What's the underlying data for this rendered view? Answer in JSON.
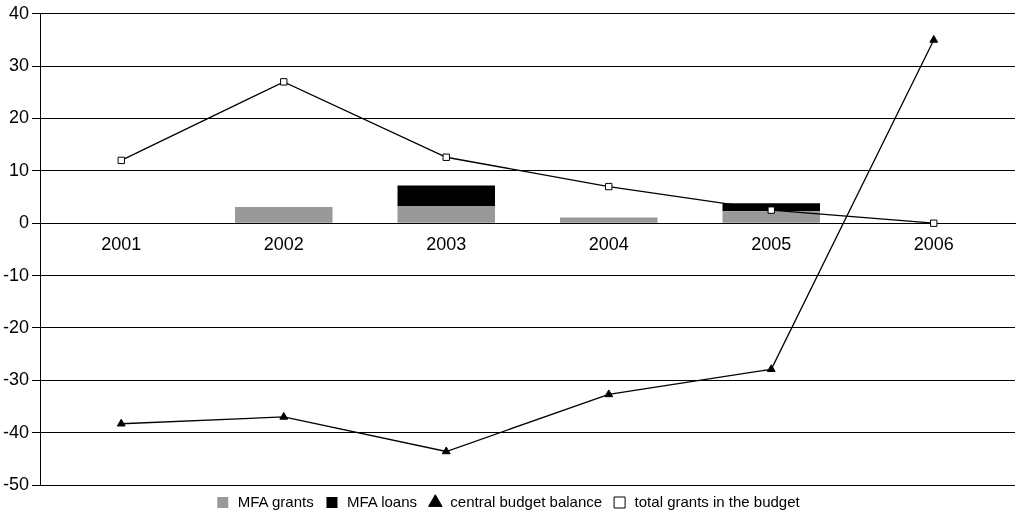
{
  "chart_data": {
    "type": "bar",
    "categories": [
      "2001",
      "2002",
      "2003",
      "2004",
      "2005",
      "2006"
    ],
    "stacked": true,
    "series": [
      {
        "name": "MFA grants",
        "color": "#999999",
        "values": [
          null,
          3.1,
          3.3,
          1.1,
          2.3,
          null
        ]
      },
      {
        "name": "MFA loans",
        "color": "#000000",
        "values": [
          null,
          null,
          3.9,
          null,
          1.5,
          null
        ]
      },
      {
        "name": "central budget balance",
        "type": "line",
        "color": "#000000",
        "marker": "triangle",
        "values": [
          -38.3,
          -37,
          -43.6,
          -32.7,
          -27.9,
          35
        ]
      },
      {
        "name": "total grants in the budget",
        "type": "line",
        "color": "#000000",
        "marker": "square",
        "values": [
          12,
          27,
          12.6,
          7,
          2.5,
          0
        ]
      }
    ],
    "ylim": [
      -50,
      40
    ],
    "yticks": [
      -50,
      -40,
      -30,
      -20,
      -10,
      0,
      10,
      20,
      30,
      40
    ],
    "grid": "y",
    "legend": "bottom"
  }
}
